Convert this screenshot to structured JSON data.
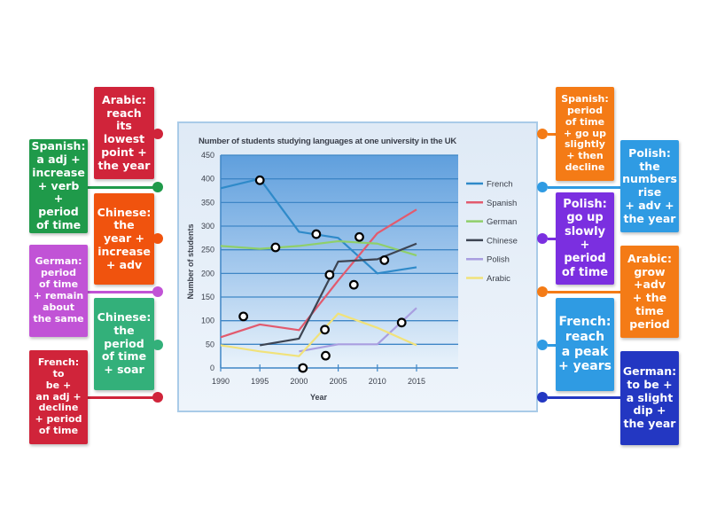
{
  "chart_data": {
    "type": "line",
    "title": "Number of students studying languages at one university in the UK",
    "xlabel": "Year",
    "ylabel": "Number of students",
    "ylim": [
      0,
      450
    ],
    "yticks": [
      0,
      50,
      100,
      150,
      200,
      250,
      300,
      350,
      400,
      450
    ],
    "xticks": [
      1990,
      1995,
      2000,
      2005,
      2010,
      2015
    ],
    "grid": true,
    "legend_position": "right",
    "series": [
      {
        "name": "French",
        "color": "#2f8ac9",
        "x": [
          1990,
          1995,
          2000,
          2005,
          2010,
          2015
        ],
        "values": [
          380,
          400,
          288,
          275,
          200,
          213
        ]
      },
      {
        "name": "Spanish",
        "color": "#e25a6e",
        "x": [
          1990,
          1995,
          2000,
          2005,
          2010,
          2015
        ],
        "values": [
          65,
          92,
          80,
          185,
          285,
          335
        ]
      },
      {
        "name": "German",
        "color": "#8fcf6a",
        "x": [
          1990,
          1995,
          2000,
          2005,
          2010,
          2015
        ],
        "values": [
          258,
          252,
          258,
          268,
          263,
          238
        ]
      },
      {
        "name": "Chinese",
        "color": "#3d4452",
        "x": [
          1995,
          2000,
          2005,
          2010,
          2015
        ],
        "values": [
          48,
          62,
          225,
          230,
          263
        ]
      },
      {
        "name": "Polish",
        "color": "#a99ee0",
        "x": [
          2000,
          2005,
          2010,
          2015
        ],
        "values": [
          35,
          50,
          50,
          127
        ]
      },
      {
        "name": "Arabic",
        "color": "#f1e27a",
        "x": [
          1990,
          1995,
          2000,
          2005,
          2010,
          2015
        ],
        "values": [
          48,
          35,
          25,
          115,
          85,
          48
        ]
      }
    ],
    "markers": [
      {
        "year": 1995,
        "value": 397
      },
      {
        "year": 1997,
        "value": 255
      },
      {
        "year": 2002.2,
        "value": 283
      },
      {
        "year": 2007.7,
        "value": 277
      },
      {
        "year": 2010.9,
        "value": 228
      },
      {
        "year": 2003.9,
        "value": 197
      },
      {
        "year": 2007,
        "value": 176
      },
      {
        "year": 1992.9,
        "value": 109
      },
      {
        "year": 2003.3,
        "value": 81
      },
      {
        "year": 2013.1,
        "value": 96
      },
      {
        "year": 2000.5,
        "value": 0
      },
      {
        "year": 2003.4,
        "value": 26
      }
    ]
  },
  "labels": {
    "left": [
      {
        "id": "arabic-lowest",
        "lines": [
          "Arabic:",
          "reach",
          "its",
          "lowest",
          "point +",
          "the year"
        ],
        "color": "#d0243a"
      },
      {
        "id": "spanish-increase",
        "lines": [
          "Spanish:",
          "a adj +",
          "increase",
          "+ verb +",
          "period",
          "of time"
        ],
        "color": "#1f9a4a"
      },
      {
        "id": "chinese-increase",
        "lines": [
          "Chinese:",
          "the",
          "year +",
          "increase",
          "+ adv"
        ],
        "color": "#f0530e"
      },
      {
        "id": "german-remain",
        "lines": [
          "German:",
          "period",
          "of time",
          "+ remain",
          "about",
          "the same"
        ],
        "color": "#c153d6"
      },
      {
        "id": "chinese-soar",
        "lines": [
          "Chinese:",
          "the",
          "period",
          "of time",
          "+ soar"
        ],
        "color": "#33b07a"
      },
      {
        "id": "french-decline",
        "lines": [
          "French:",
          "to",
          "be +",
          "an adj +",
          "decline",
          "+ period",
          "of time"
        ],
        "color": "#d0243a"
      }
    ],
    "right": [
      {
        "id": "spanish-goup",
        "lines": [
          "Spanish:",
          "period",
          "of time",
          "+ go up",
          "slightly",
          "+ then",
          "decline"
        ],
        "color": "#f47b16"
      },
      {
        "id": "polish-rise",
        "lines": [
          "Polish:",
          "the",
          "numbers",
          "rise",
          "+ adv +",
          "the year"
        ],
        "color": "#2f9be3"
      },
      {
        "id": "polish-slowly",
        "lines": [
          "Polish:",
          "go up",
          "slowly +",
          "period",
          "of time"
        ],
        "color": "#7b2fe0"
      },
      {
        "id": "arabic-grow",
        "lines": [
          "Arabic:",
          "grow",
          "+adv",
          "+ the",
          "time",
          "period"
        ],
        "color": "#f47b16"
      },
      {
        "id": "french-peak",
        "lines": [
          "French:",
          "reach",
          "a peak",
          "+ years"
        ],
        "color": "#2f9be3"
      },
      {
        "id": "german-dip",
        "lines": [
          "German:",
          "to be +",
          "a slight",
          "dip +",
          "the year"
        ],
        "color": "#2337c2"
      }
    ]
  }
}
